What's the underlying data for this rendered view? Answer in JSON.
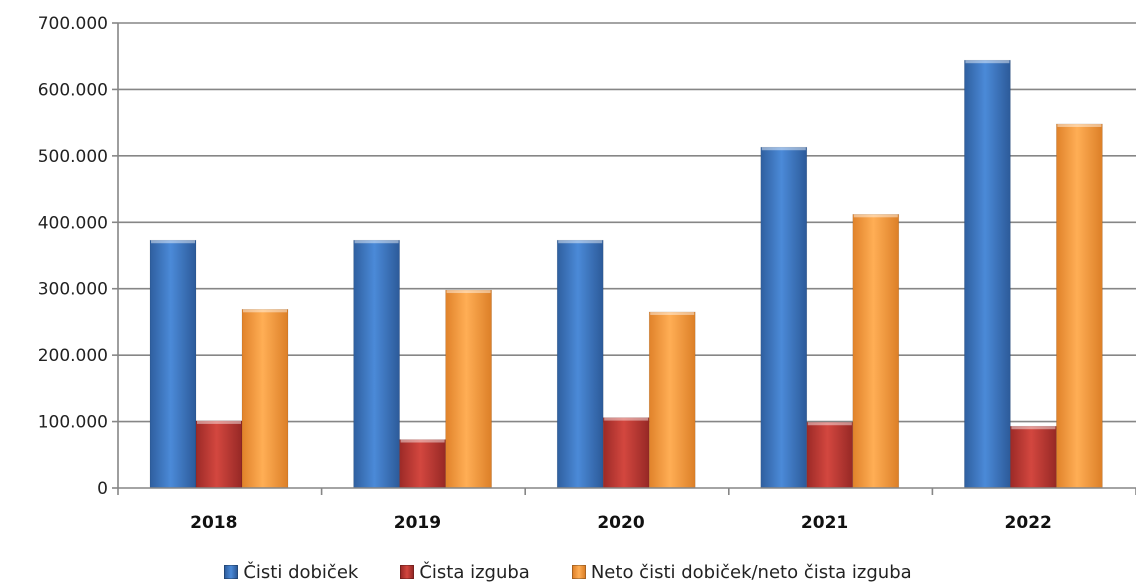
{
  "chart_data": {
    "type": "bar",
    "title": "",
    "xlabel": "",
    "ylabel": "",
    "categories": [
      "2018",
      "2019",
      "2020",
      "2021",
      "2022"
    ],
    "series": [
      {
        "name": "Čisti dobiček",
        "color": "#3f78c8",
        "values": [
          373000,
          373000,
          373000,
          513000,
          644000
        ]
      },
      {
        "name": "Čista izguba",
        "color": "#c03a35",
        "values": [
          101000,
          73000,
          106000,
          99000,
          93000
        ]
      },
      {
        "name": "Neto čisti dobiček/neto čista izguba",
        "color": "#f19a3e",
        "values": [
          269000,
          298000,
          265000,
          412000,
          548000
        ]
      }
    ],
    "ylim": [
      0,
      700000
    ],
    "yticks": [
      0,
      100000,
      200000,
      300000,
      400000,
      500000,
      600000,
      700000
    ],
    "ytick_labels": [
      "0",
      "100.000",
      "200.000",
      "300.000",
      "400.000",
      "500.000",
      "600.000",
      "700.000"
    ],
    "grid": true,
    "legend_position": "bottom"
  }
}
